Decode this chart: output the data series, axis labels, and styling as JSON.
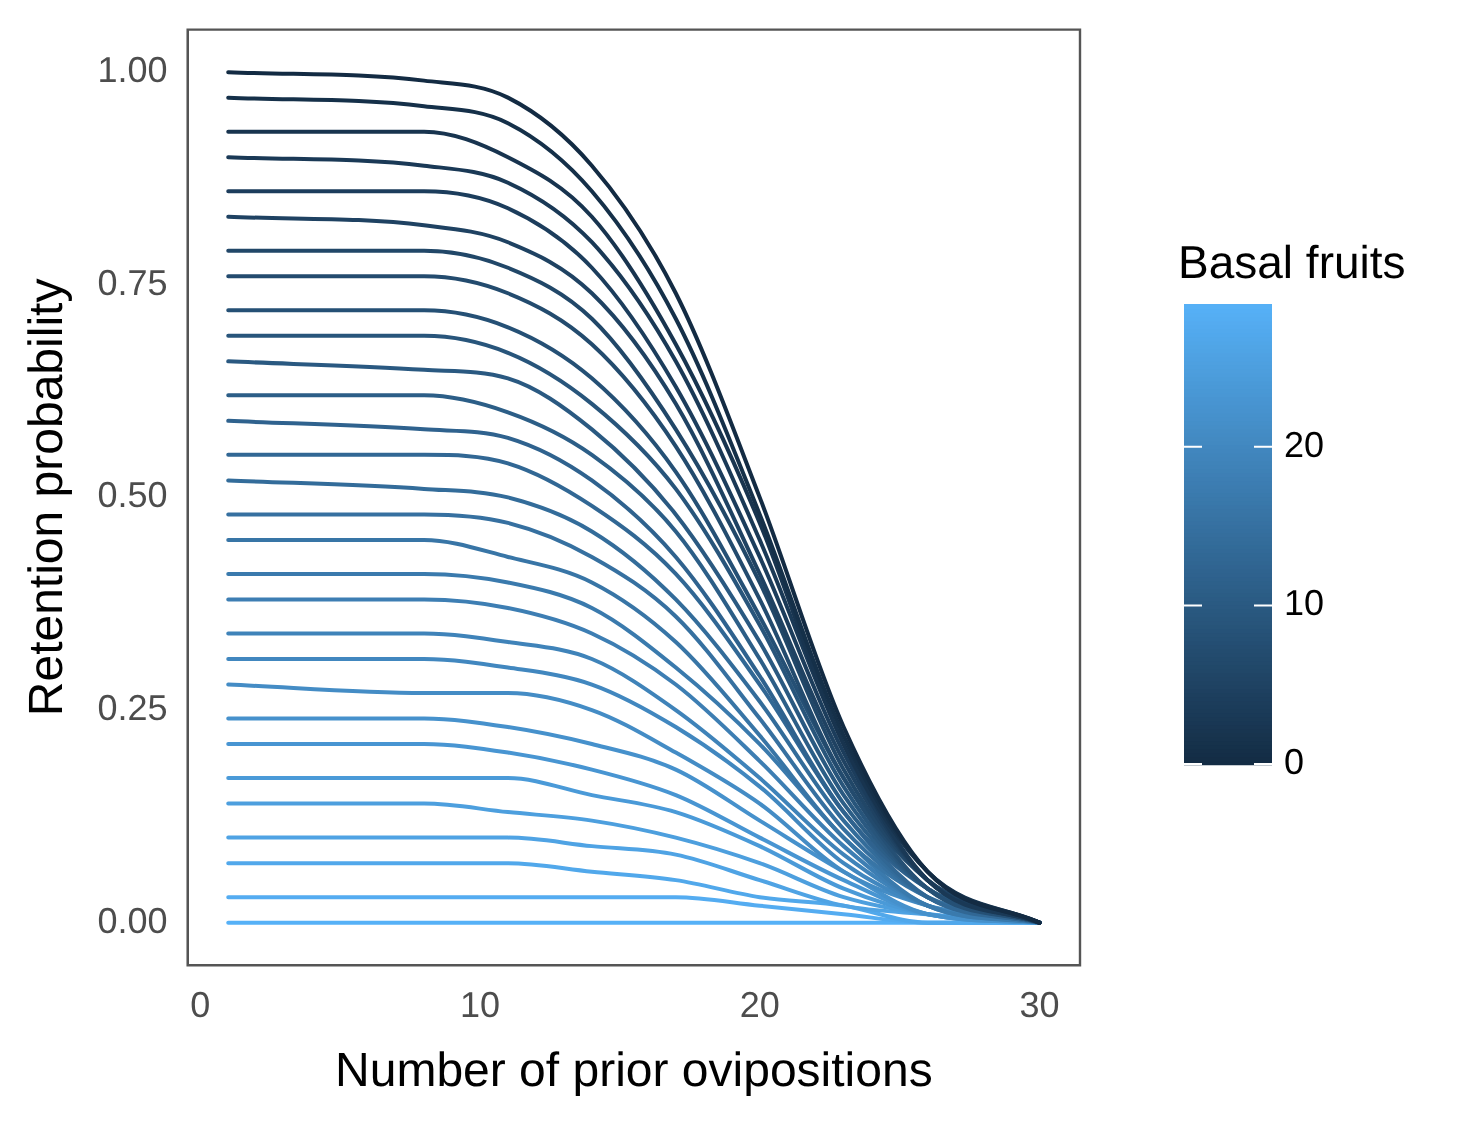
{
  "chart_data": {
    "type": "line",
    "xlabel": "Number of prior ovipositions",
    "ylabel": "Retention probability",
    "clabel": "Basal fruits",
    "clim": [
      0,
      29
    ],
    "cticks": [
      0,
      10,
      20
    ],
    "xlim": [
      -0.45,
      31.45
    ],
    "xticks": [
      0,
      10,
      20,
      30
    ],
    "ylim": [
      -0.05,
      1.05
    ],
    "yticks": [
      {
        "value": 0,
        "label": "0.00"
      },
      {
        "value": 0.25,
        "label": "0.25"
      },
      {
        "value": 0.5,
        "label": "0.50"
      },
      {
        "value": 0.75,
        "label": "0.75"
      },
      {
        "value": 1,
        "label": "1.00"
      }
    ],
    "grid": false,
    "legend": false,
    "marker": "none",
    "line_style": "solid",
    "x": [
      1,
      8,
      11,
      14,
      17,
      20,
      23,
      26,
      30
    ],
    "series": [
      {
        "color": "#132b43",
        "values": [
          1.0,
          0.99,
          0.97,
          0.89,
          0.74,
          0.5,
          0.23,
          0.06,
          0
        ]
      },
      {
        "color": "#153049",
        "values": [
          0.97,
          0.96,
          0.94,
          0.86,
          0.71,
          0.48,
          0.22,
          0.06,
          0
        ]
      },
      {
        "color": "#18344f",
        "values": [
          0.93,
          0.93,
          0.9,
          0.83,
          0.68,
          0.47,
          0.21,
          0.06,
          0
        ]
      },
      {
        "color": "#1a3956",
        "values": [
          0.9,
          0.89,
          0.87,
          0.8,
          0.66,
          0.45,
          0.21,
          0.05,
          0
        ]
      },
      {
        "color": "#1c3d5c",
        "values": [
          0.86,
          0.86,
          0.84,
          0.77,
          0.63,
          0.43,
          0.2,
          0.05,
          0
        ]
      },
      {
        "color": "#1f4262",
        "values": [
          0.83,
          0.82,
          0.8,
          0.74,
          0.61,
          0.41,
          0.19,
          0.05,
          0
        ]
      },
      {
        "color": "#214768",
        "values": [
          0.79,
          0.79,
          0.77,
          0.71,
          0.58,
          0.4,
          0.18,
          0.05,
          0
        ]
      },
      {
        "color": "#234b6e",
        "values": [
          0.76,
          0.76,
          0.74,
          0.68,
          0.56,
          0.38,
          0.17,
          0.05,
          0
        ]
      },
      {
        "color": "#255075",
        "values": [
          0.72,
          0.72,
          0.7,
          0.64,
          0.53,
          0.36,
          0.17,
          0.04,
          0
        ]
      },
      {
        "color": "#28557b",
        "values": [
          0.69,
          0.69,
          0.67,
          0.61,
          0.51,
          0.35,
          0.16,
          0.04,
          0
        ]
      },
      {
        "color": "#2a5981",
        "values": [
          0.66,
          0.65,
          0.64,
          0.58,
          0.48,
          0.33,
          0.15,
          0.04,
          0
        ]
      },
      {
        "color": "#2c5e87",
        "values": [
          0.62,
          0.62,
          0.6,
          0.55,
          0.46,
          0.31,
          0.14,
          0.04,
          0
        ]
      },
      {
        "color": "#2f628e",
        "values": [
          0.59,
          0.58,
          0.57,
          0.52,
          0.43,
          0.29,
          0.13,
          0.04,
          0
        ]
      },
      {
        "color": "#316794",
        "values": [
          0.55,
          0.55,
          0.54,
          0.49,
          0.41,
          0.28,
          0.13,
          0.03,
          0
        ]
      },
      {
        "color": "#336c9a",
        "values": [
          0.52,
          0.51,
          0.5,
          0.46,
          0.38,
          0.26,
          0.12,
          0.03,
          0
        ]
      },
      {
        "color": "#3670a0",
        "values": [
          0.48,
          0.48,
          0.47,
          0.43,
          0.36,
          0.24,
          0.11,
          0.03,
          0
        ]
      },
      {
        "color": "#3875a6",
        "values": [
          0.45,
          0.45,
          0.43,
          0.4,
          0.33,
          0.22,
          0.1,
          0.03,
          0
        ]
      },
      {
        "color": "#3a7aad",
        "values": [
          0.41,
          0.41,
          0.4,
          0.37,
          0.3,
          0.21,
          0.1,
          0.02,
          0
        ]
      },
      {
        "color": "#3d7eb3",
        "values": [
          0.38,
          0.38,
          0.37,
          0.34,
          0.28,
          0.19,
          0.09,
          0.02,
          0
        ]
      },
      {
        "color": "#3f83b9",
        "values": [
          0.34,
          0.34,
          0.33,
          0.31,
          0.25,
          0.17,
          0.08,
          0.02,
          0
        ]
      },
      {
        "color": "#4187bf",
        "values": [
          0.31,
          0.31,
          0.3,
          0.28,
          0.23,
          0.16,
          0.07,
          0.02,
          0
        ]
      },
      {
        "color": "#448cc5",
        "values": [
          0.28,
          0.27,
          0.27,
          0.25,
          0.2,
          0.14,
          0.06,
          0.02,
          0
        ]
      },
      {
        "color": "#4691cc",
        "values": [
          0.24,
          0.24,
          0.23,
          0.21,
          0.18,
          0.12,
          0.06,
          0.01,
          0
        ]
      },
      {
        "color": "#4895d2",
        "values": [
          0.21,
          0.21,
          0.2,
          0.18,
          0.15,
          0.1,
          0.05,
          0.01,
          0
        ]
      },
      {
        "color": "#4a9ad8",
        "values": [
          0.17,
          0.17,
          0.17,
          0.15,
          0.13,
          0.09,
          0.04,
          0.01,
          0
        ]
      },
      {
        "color": "#4d9fde",
        "values": [
          0.14,
          0.14,
          0.13,
          0.12,
          0.1,
          0.07,
          0.03,
          0.01,
          0
        ]
      },
      {
        "color": "#4fa3e4",
        "values": [
          0.1,
          0.1,
          0.1,
          0.09,
          0.08,
          0.05,
          0.02,
          0.01,
          0
        ]
      },
      {
        "color": "#51a8eb",
        "values": [
          0.07,
          0.07,
          0.07,
          0.06,
          0.05,
          0.03,
          0.02,
          0,
          0
        ]
      },
      {
        "color": "#54acf1",
        "values": [
          0.03,
          0.03,
          0.03,
          0.03,
          0.03,
          0.02,
          0.01,
          0,
          0
        ]
      },
      {
        "color": "#56b1f7",
        "values": [
          0,
          0,
          0,
          0,
          0,
          0,
          0,
          0,
          0
        ]
      }
    ]
  }
}
